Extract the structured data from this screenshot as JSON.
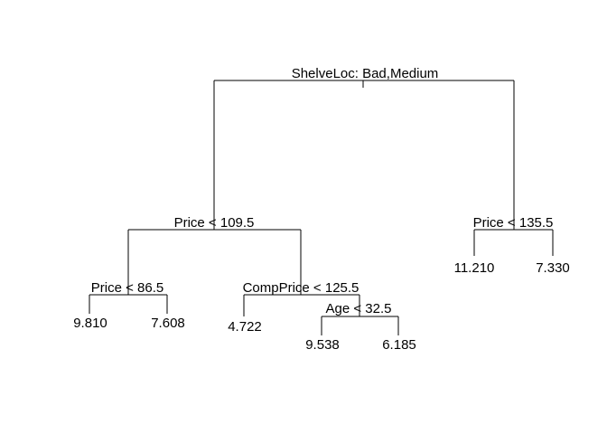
{
  "tree": {
    "root": {
      "split": "ShelveLoc: Bad,Medium",
      "left": {
        "split": "Price < 109.5",
        "left": {
          "split": "Price < 86.5",
          "left_leaf": "9.810",
          "right_leaf": "7.608"
        },
        "right": {
          "split": "CompPrice < 125.5",
          "left_leaf": "4.722",
          "right": {
            "split": "Age < 32.5",
            "left_leaf": "9.538",
            "right_leaf": "6.185"
          }
        }
      },
      "right": {
        "split": "Price < 135.5",
        "left_leaf": "11.210",
        "right_leaf": "7.330"
      }
    }
  }
}
